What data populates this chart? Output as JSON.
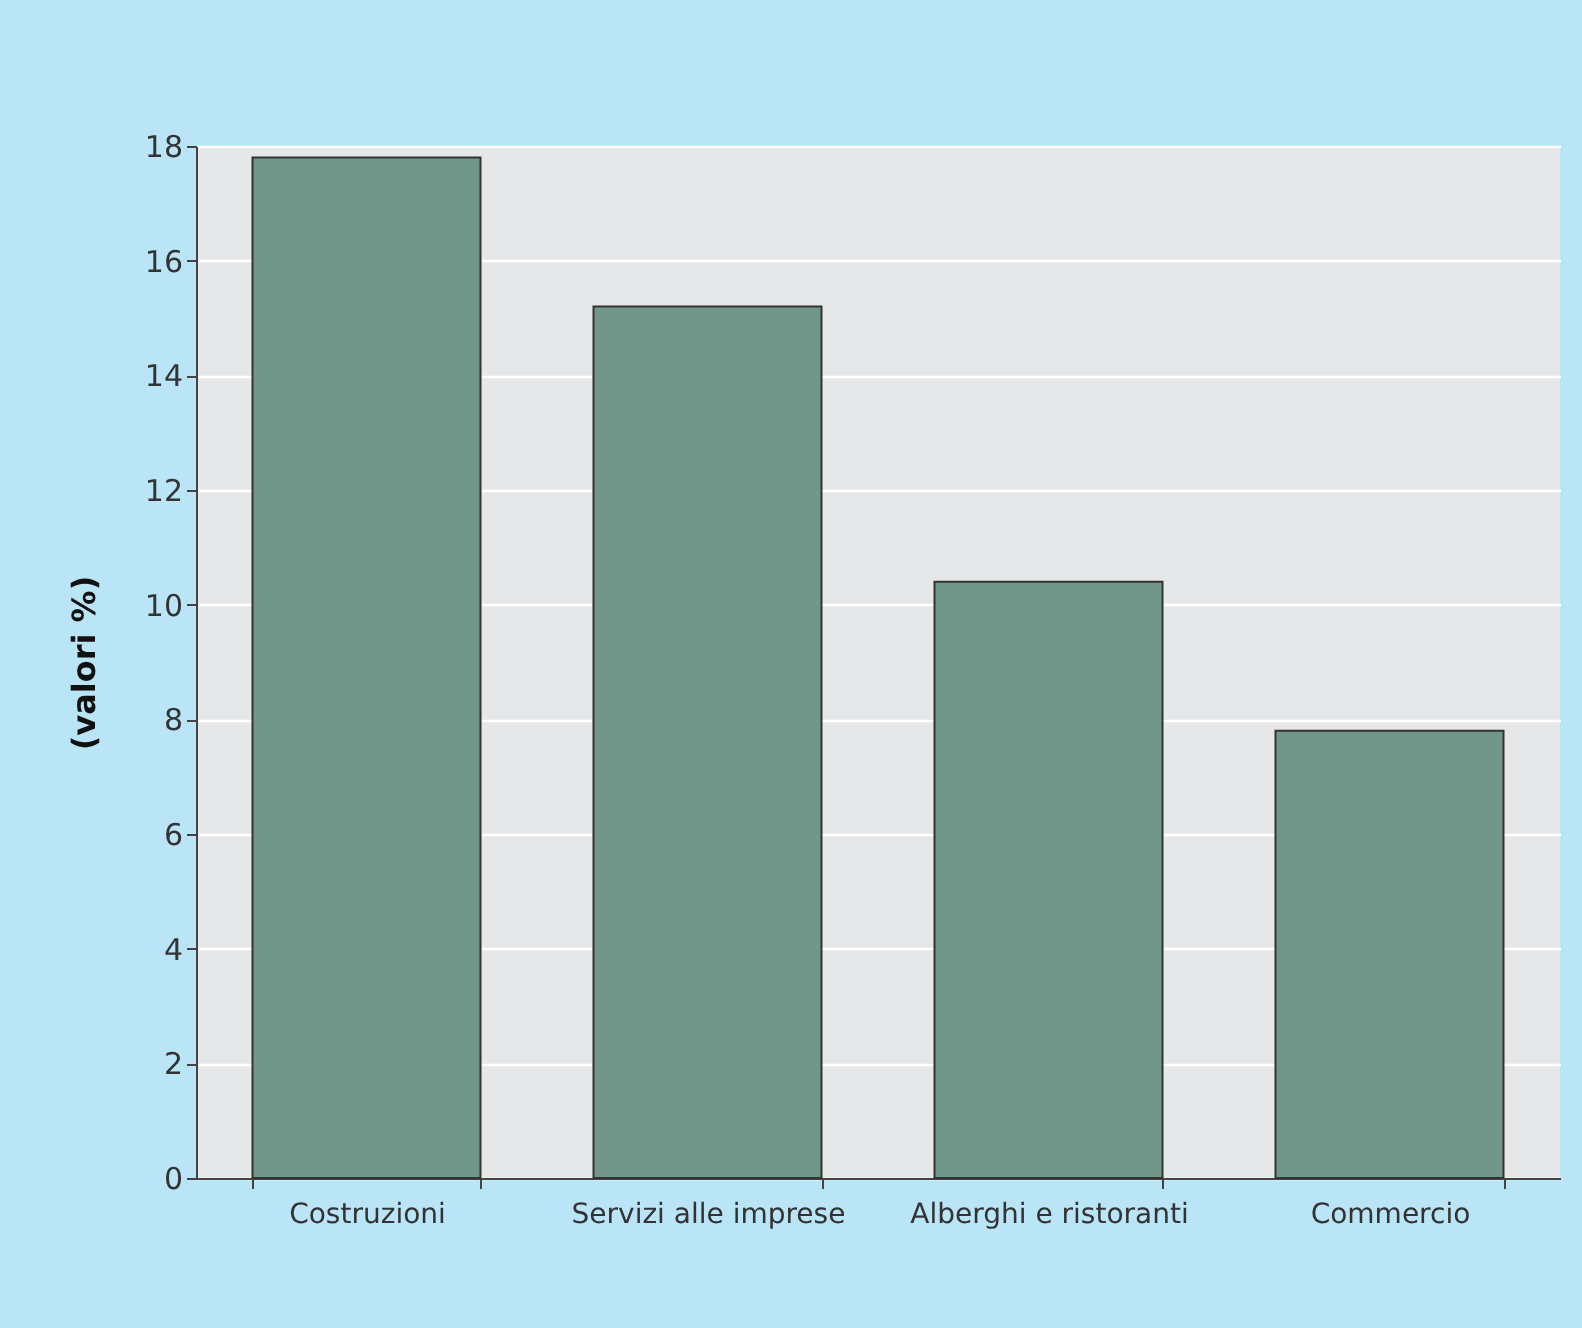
{
  "chart_data": {
    "type": "bar",
    "ylabel": "(valori %)",
    "categories": [
      "Costruzioni",
      "Servizi alle imprese",
      "Alberghi e ristoranti",
      "Commercio"
    ],
    "values": [
      17.8,
      15.2,
      10.4,
      7.8
    ],
    "color": "#70978a",
    "ylim": [
      0,
      18
    ],
    "yticks": [
      0,
      2,
      4,
      6,
      8,
      10,
      12,
      14,
      16,
      18
    ],
    "grid": "y"
  }
}
